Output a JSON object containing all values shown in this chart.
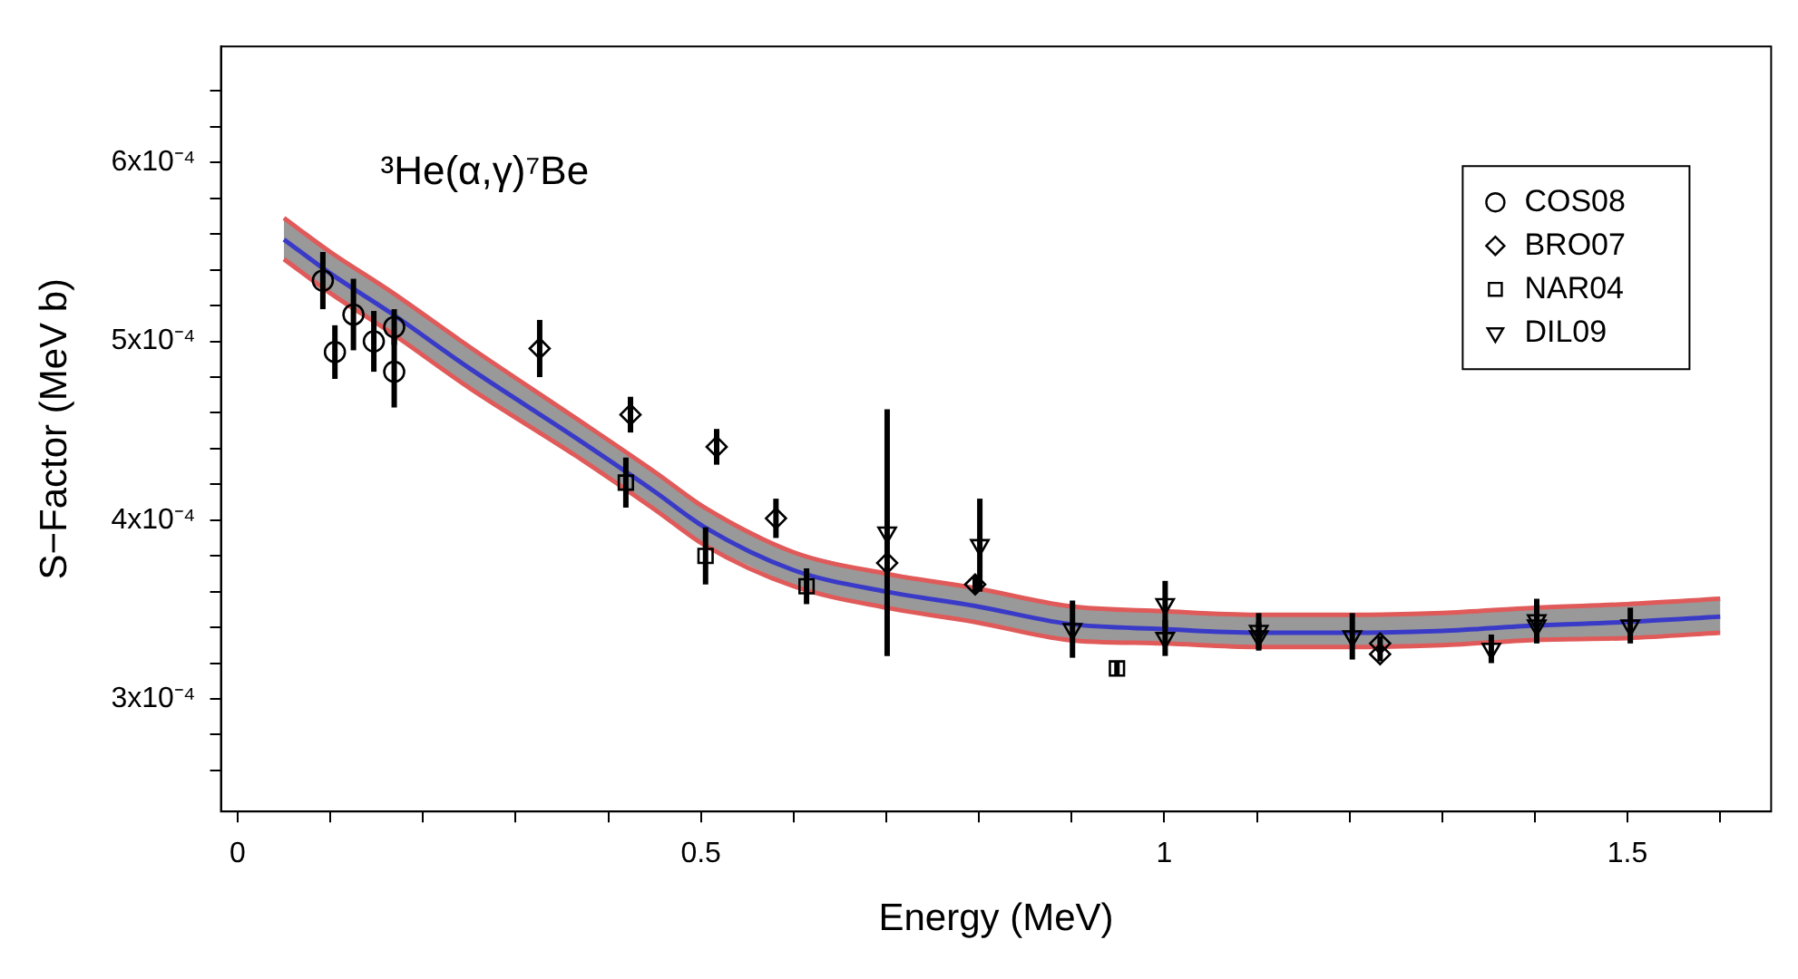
{
  "chart_data": {
    "type": "scatter",
    "xlabel": "Energy (MeV)",
    "ylabel": "S−Factor (MeV b)",
    "annotations": [
      "³He(α,γ)⁷Be"
    ],
    "xlim": [
      -0.018,
      1.655
    ],
    "ylim": [
      0.000237,
      0.000665
    ],
    "xticks": [
      0,
      {
        "value": 0.1,
        "label": null
      },
      {
        "value": 0.2,
        "label": null
      },
      {
        "value": 0.3,
        "label": null
      },
      {
        "value": 0.4,
        "label": null
      },
      0.5,
      {
        "value": 0.6,
        "label": null
      },
      {
        "value": 0.7,
        "label": null
      },
      {
        "value": 0.8,
        "label": null
      },
      {
        "value": 0.9,
        "label": null
      },
      1,
      {
        "value": 1.1,
        "label": null
      },
      {
        "value": 1.2,
        "label": null
      },
      {
        "value": 1.3,
        "label": null
      },
      {
        "value": 1.4,
        "label": null
      },
      1.5,
      {
        "value": 1.6,
        "label": null
      }
    ],
    "yticks": [
      {
        "value": 0.00026,
        "label": null
      },
      {
        "value": 0.00028,
        "label": null
      },
      {
        "value": 0.0003,
        "label": "3x10⁻⁴"
      },
      {
        "value": 0.00032,
        "label": null
      },
      {
        "value": 0.00034,
        "label": null
      },
      {
        "value": 0.00036,
        "label": null
      },
      {
        "value": 0.00038,
        "label": null
      },
      {
        "value": 0.0004,
        "label": "4x10⁻⁴"
      },
      {
        "value": 0.00042,
        "label": null
      },
      {
        "value": 0.00044,
        "label": null
      },
      {
        "value": 0.00046,
        "label": null
      },
      {
        "value": 0.00048,
        "label": null
      },
      {
        "value": 0.0005,
        "label": "5x10⁻⁴"
      },
      {
        "value": 0.00052,
        "label": null
      },
      {
        "value": 0.00054,
        "label": null
      },
      {
        "value": 0.00056,
        "label": null
      },
      {
        "value": 0.00058,
        "label": null
      },
      {
        "value": 0.0006,
        "label": "6x10⁻⁴"
      },
      {
        "value": 0.00062,
        "label": null
      },
      {
        "value": 0.00064,
        "label": null
      }
    ],
    "grid": false,
    "legend": "top right",
    "series": [
      {
        "type": "line",
        "color": "#e05a5a",
        "marker": "none",
        "x": [
          0.05,
          0.1,
          0.165,
          0.25,
          0.365,
          0.45,
          0.504,
          0.6,
          0.7,
          0.796,
          0.896,
          1.0,
          1.1,
          1.2,
          1.3,
          1.4,
          1.5,
          1.6
        ],
        "values": [
          0.000569,
          0.00055,
          0.000528,
          0.000497,
          0.000457,
          0.000427,
          0.000407,
          0.000382,
          0.00037,
          0.000362,
          0.000352,
          0.000349,
          0.000347,
          0.000347,
          0.000348,
          0.000351,
          0.000353,
          0.000356
        ]
      },
      {
        "type": "line",
        "color": "#e05a5a",
        "marker": "none",
        "x": [
          0.05,
          0.1,
          0.165,
          0.25,
          0.365,
          0.45,
          0.504,
          0.6,
          0.7,
          0.796,
          0.896,
          1.0,
          1.1,
          1.2,
          1.3,
          1.4,
          1.5,
          1.6
        ],
        "values": [
          0.000546,
          0.000527,
          0.000505,
          0.000474,
          0.000436,
          0.000406,
          0.000386,
          0.000363,
          0.000351,
          0.000343,
          0.000333,
          0.000331,
          0.000329,
          0.000329,
          0.00033,
          0.000333,
          0.000334,
          0.000337
        ]
      },
      {
        "type": "line",
        "color": "#3a3ac8",
        "marker": "none",
        "x": [
          0.05,
          0.1,
          0.165,
          0.25,
          0.365,
          0.45,
          0.504,
          0.6,
          0.7,
          0.796,
          0.896,
          1.0,
          1.1,
          1.2,
          1.3,
          1.4,
          1.5,
          1.6
        ],
        "values": [
          0.000557,
          0.000538,
          0.000516,
          0.000485,
          0.000446,
          0.000416,
          0.000396,
          0.000372,
          0.00036,
          0.000352,
          0.000342,
          0.000339,
          0.000337,
          0.000337,
          0.000338,
          0.000341,
          0.000343,
          0.000346
        ],
        "lower": [
          0.000546,
          0.000527,
          0.000505,
          0.000474,
          0.000436,
          0.000406,
          0.000386,
          0.000363,
          0.000351,
          0.000343,
          0.000333,
          0.000331,
          0.000329,
          0.000329,
          0.00033,
          0.000333,
          0.000334,
          0.000337
        ],
        "upper": [
          0.000569,
          0.00055,
          0.000528,
          0.000497,
          0.000457,
          0.000427,
          0.000407,
          0.000382,
          0.00037,
          0.000362,
          0.000352,
          0.000349,
          0.000347,
          0.000347,
          0.000348,
          0.000351,
          0.000353,
          0.000356
        ]
      },
      {
        "name": "COS08",
        "color": "#000000",
        "marker": "circle",
        "x": [
          0.092,
          0.105,
          0.125,
          0.147,
          0.169,
          0.169
        ],
        "values": [
          0.000534,
          0.000494,
          0.000515,
          0.0005,
          0.000508,
          0.000483
        ],
        "errors": [
          1.6e-05,
          1.5e-05,
          2e-05,
          1.7e-05,
          1e-05,
          2e-05
        ]
      },
      {
        "name": "BRO07",
        "color": "#000000",
        "marker": "diamond",
        "x": [
          0.326,
          0.424,
          0.517,
          0.581,
          0.701,
          0.796,
          1.233,
          1.233
        ],
        "values": [
          0.000496,
          0.000459,
          0.000441,
          0.000401,
          0.000376,
          0.000364,
          0.000331,
          0.000325
        ],
        "errors": [
          1.6e-05,
          1e-05,
          1e-05,
          1.1e-05,
          null,
          5e-06,
          4e-06,
          4e-06
        ]
      },
      {
        "name": "NAR04",
        "color": "#000000",
        "marker": "square",
        "x": [
          0.419,
          0.505,
          0.614,
          0.949
        ],
        "values": [
          0.000421,
          0.00038,
          0.000363,
          0.000317
        ],
        "errors": [
          1.4e-05,
          1.6e-05,
          1e-05,
          4e-06
        ]
      },
      {
        "name": "DIL09",
        "color": "#000000",
        "marker": "triangle",
        "x": [
          0.701,
          0.801,
          0.901,
          1.001,
          1.001,
          1.102,
          1.102,
          1.203,
          1.353,
          1.402,
          1.402,
          1.503
        ],
        "values": [
          0.000393,
          0.000386,
          0.000339,
          0.000353,
          0.000334,
          0.000338,
          0.000335,
          0.000335,
          0.000328,
          0.000344,
          0.000341,
          0.000341
        ],
        "errors": [
          6.9e-05,
          2.6e-05,
          1.6e-05,
          1.3e-05,
          1e-05,
          1e-05,
          8e-06,
          1.3e-05,
          8e-06,
          1.2e-05,
          1e-05,
          1e-05
        ]
      }
    ]
  }
}
